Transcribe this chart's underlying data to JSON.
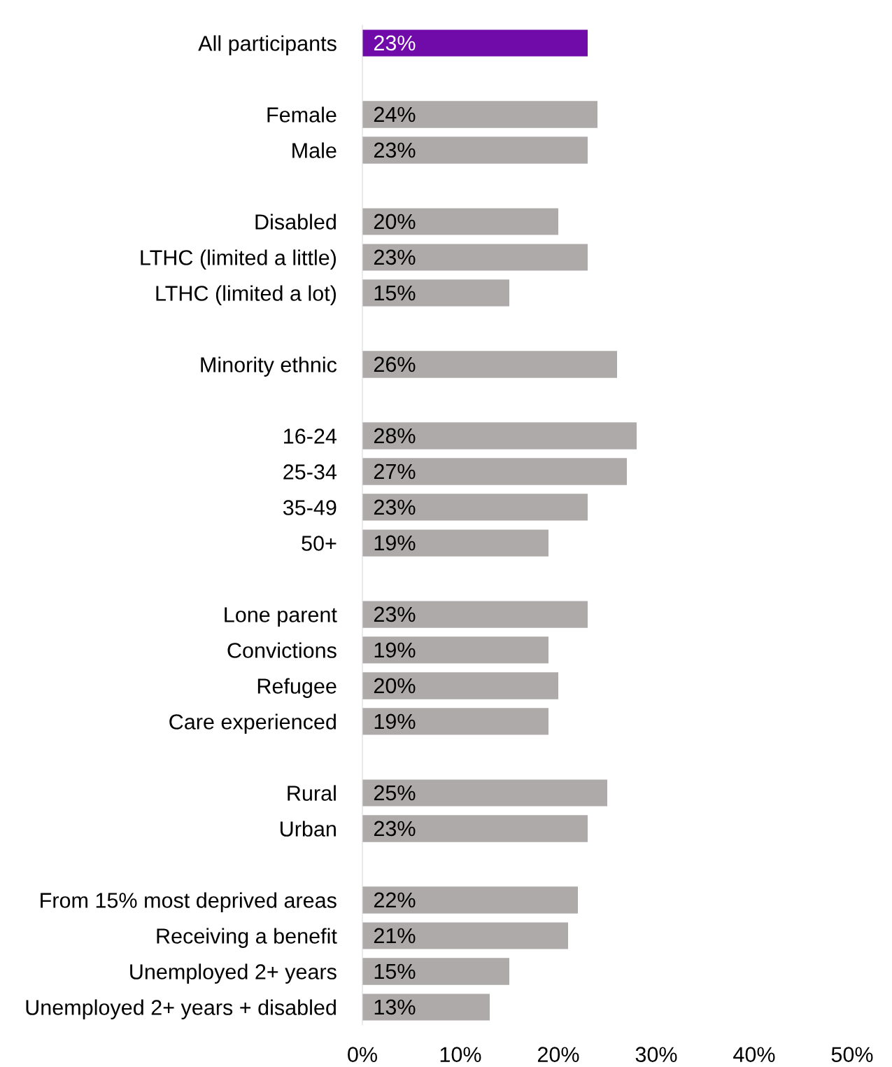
{
  "chart_data": {
    "type": "bar",
    "orientation": "horizontal",
    "categories": [
      "All participants",
      null,
      "Female",
      "Male",
      null,
      "Disabled",
      "LTHC (limited a little)",
      "LTHC (limited a lot)",
      null,
      "Minority ethnic",
      null,
      "16-24",
      "25-34",
      "35-49",
      "50+",
      null,
      "Lone parent",
      "Convictions",
      "Refugee",
      "Care experienced",
      null,
      "Rural",
      "Urban",
      null,
      "From 15% most deprived areas",
      "Receiving a benefit",
      "Unemployed 2+ years",
      "Unemployed 2+ years + disabled"
    ],
    "values": [
      23,
      null,
      24,
      23,
      null,
      20,
      23,
      15,
      null,
      26,
      null,
      28,
      27,
      23,
      19,
      null,
      23,
      19,
      20,
      19,
      null,
      25,
      23,
      null,
      22,
      21,
      15,
      13
    ],
    "value_labels": [
      "23%",
      null,
      "24%",
      "23%",
      null,
      "20%",
      "23%",
      "15%",
      null,
      "26%",
      null,
      "28%",
      "27%",
      "23%",
      "19%",
      null,
      "23%",
      "19%",
      "20%",
      "19%",
      null,
      "25%",
      "23%",
      null,
      "22%",
      "21%",
      "15%",
      "13%"
    ],
    "colors": [
      "#700ba9",
      null,
      "#aeaaaa",
      "#aeaaaa",
      null,
      "#aeaaaa",
      "#aeaaaa",
      "#aeaaaa",
      null,
      "#aeaaaa",
      null,
      "#aeaaaa",
      "#aeaaaa",
      "#aeaaaa",
      "#aeaaaa",
      null,
      "#aeaaaa",
      "#aeaaaa",
      "#aeaaaa",
      "#aeaaaa",
      null,
      "#aeaaaa",
      "#aeaaaa",
      null,
      "#aeaaaa",
      "#aeaaaa",
      "#aeaaaa",
      "#aeaaaa"
    ],
    "xlim": [
      0,
      50
    ],
    "xticks": [
      {
        "value": 0,
        "label": "0%"
      },
      {
        "value": 10,
        "label": "10%"
      },
      {
        "value": 20,
        "label": "20%"
      },
      {
        "value": 30,
        "label": "30%"
      },
      {
        "value": 40,
        "label": "40%"
      },
      {
        "value": 50,
        "label": "50%"
      }
    ],
    "grid": false,
    "legend": false
  }
}
